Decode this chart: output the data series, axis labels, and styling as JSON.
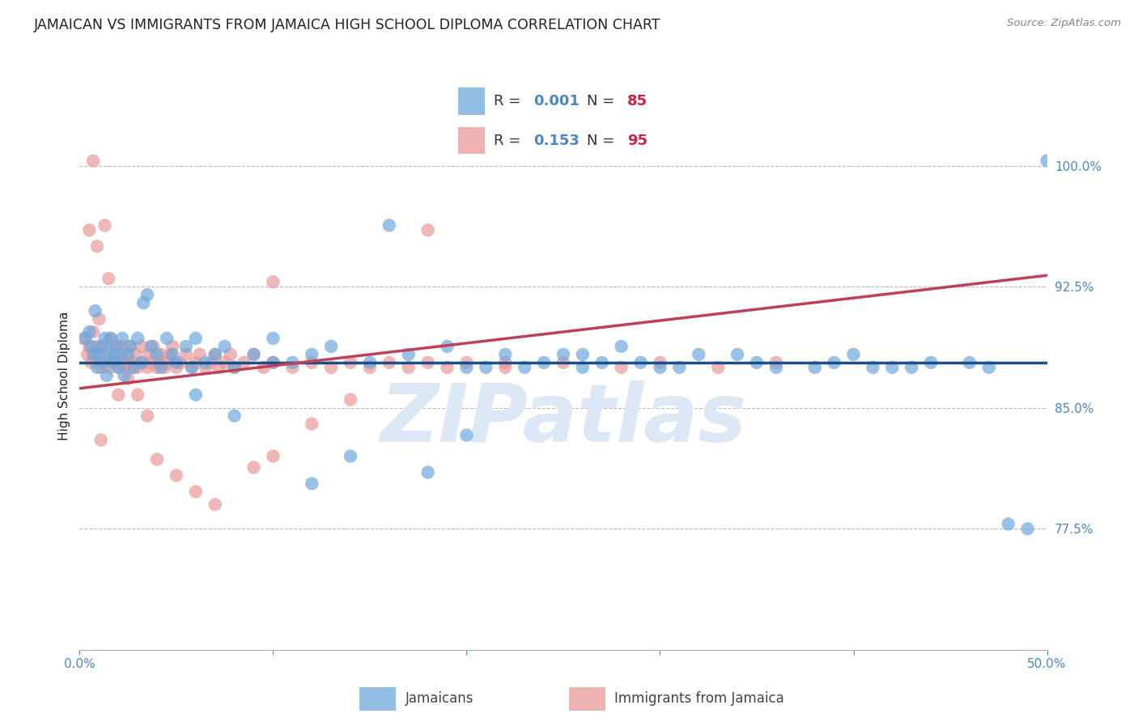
{
  "title": "JAMAICAN VS IMMIGRANTS FROM JAMAICA HIGH SCHOOL DIPLOMA CORRELATION CHART",
  "source": "Source: ZipAtlas.com",
  "ylabel": "High School Diploma",
  "yticks": [
    0.775,
    0.85,
    0.925,
    1.0
  ],
  "ytick_labels": [
    "77.5%",
    "85.0%",
    "92.5%",
    "100.0%"
  ],
  "xrange": [
    0.0,
    0.5
  ],
  "yrange": [
    0.7,
    1.04
  ],
  "watermark": "ZIPatlas",
  "blue_scatter_x": [
    0.003,
    0.005,
    0.006,
    0.007,
    0.008,
    0.009,
    0.01,
    0.011,
    0.012,
    0.013,
    0.014,
    0.015,
    0.016,
    0.017,
    0.018,
    0.019,
    0.02,
    0.021,
    0.022,
    0.023,
    0.025,
    0.026,
    0.028,
    0.03,
    0.032,
    0.033,
    0.035,
    0.037,
    0.04,
    0.042,
    0.045,
    0.048,
    0.05,
    0.055,
    0.058,
    0.06,
    0.065,
    0.07,
    0.075,
    0.08,
    0.09,
    0.1,
    0.11,
    0.12,
    0.13,
    0.15,
    0.17,
    0.19,
    0.2,
    0.22,
    0.24,
    0.26,
    0.28,
    0.3,
    0.32,
    0.35,
    0.38,
    0.4,
    0.43,
    0.46,
    0.49,
    0.5,
    0.16,
    0.21,
    0.25,
    0.29,
    0.34,
    0.36,
    0.39,
    0.41,
    0.44,
    0.47,
    0.2,
    0.23,
    0.27,
    0.31,
    0.12,
    0.14,
    0.08,
    0.06,
    0.42,
    0.48,
    0.1,
    0.18,
    0.26
  ],
  "blue_scatter_y": [
    0.893,
    0.897,
    0.888,
    0.883,
    0.91,
    0.875,
    0.883,
    0.888,
    0.878,
    0.893,
    0.87,
    0.885,
    0.893,
    0.878,
    0.883,
    0.888,
    0.875,
    0.883,
    0.893,
    0.87,
    0.883,
    0.888,
    0.875,
    0.893,
    0.878,
    0.915,
    0.92,
    0.888,
    0.883,
    0.875,
    0.893,
    0.883,
    0.878,
    0.888,
    0.875,
    0.893,
    0.878,
    0.883,
    0.888,
    0.875,
    0.883,
    0.893,
    0.878,
    0.883,
    0.888,
    0.878,
    0.883,
    0.888,
    0.875,
    0.883,
    0.878,
    0.883,
    0.888,
    0.875,
    0.883,
    0.878,
    0.875,
    0.883,
    0.875,
    0.878,
    0.775,
    1.003,
    0.963,
    0.875,
    0.883,
    0.878,
    0.883,
    0.875,
    0.878,
    0.875,
    0.878,
    0.875,
    0.833,
    0.875,
    0.878,
    0.875,
    0.803,
    0.82,
    0.845,
    0.858,
    0.875,
    0.778,
    0.878,
    0.81,
    0.875
  ],
  "pink_scatter_x": [
    0.002,
    0.004,
    0.005,
    0.006,
    0.007,
    0.008,
    0.009,
    0.01,
    0.011,
    0.012,
    0.013,
    0.014,
    0.015,
    0.016,
    0.017,
    0.018,
    0.019,
    0.02,
    0.021,
    0.022,
    0.023,
    0.024,
    0.025,
    0.026,
    0.027,
    0.028,
    0.029,
    0.03,
    0.032,
    0.033,
    0.035,
    0.036,
    0.037,
    0.038,
    0.04,
    0.041,
    0.042,
    0.044,
    0.045,
    0.047,
    0.048,
    0.05,
    0.052,
    0.055,
    0.058,
    0.06,
    0.062,
    0.065,
    0.068,
    0.07,
    0.072,
    0.075,
    0.078,
    0.08,
    0.085,
    0.09,
    0.095,
    0.1,
    0.11,
    0.12,
    0.13,
    0.14,
    0.15,
    0.16,
    0.17,
    0.18,
    0.19,
    0.2,
    0.22,
    0.25,
    0.28,
    0.3,
    0.33,
    0.36,
    0.005,
    0.007,
    0.009,
    0.011,
    0.013,
    0.015,
    0.02,
    0.025,
    0.03,
    0.035,
    0.04,
    0.05,
    0.06,
    0.07,
    0.09,
    0.1,
    0.12,
    0.14,
    0.18,
    0.22,
    0.1
  ],
  "pink_scatter_y": [
    0.893,
    0.883,
    0.888,
    0.878,
    0.897,
    0.883,
    0.888,
    0.905,
    0.875,
    0.888,
    0.878,
    0.883,
    0.875,
    0.893,
    0.878,
    0.883,
    0.888,
    0.875,
    0.878,
    0.888,
    0.875,
    0.883,
    0.878,
    0.888,
    0.875,
    0.878,
    0.883,
    0.875,
    0.888,
    0.878,
    0.875,
    0.883,
    0.878,
    0.888,
    0.875,
    0.878,
    0.883,
    0.875,
    0.878,
    0.883,
    0.888,
    0.875,
    0.878,
    0.883,
    0.875,
    0.878,
    0.883,
    0.875,
    0.878,
    0.883,
    0.875,
    0.878,
    0.883,
    0.875,
    0.878,
    0.883,
    0.875,
    0.878,
    0.875,
    0.878,
    0.875,
    0.878,
    0.875,
    0.878,
    0.875,
    0.878,
    0.875,
    0.878,
    0.875,
    0.878,
    0.875,
    0.878,
    0.875,
    0.878,
    0.96,
    1.003,
    0.95,
    0.83,
    0.963,
    0.93,
    0.858,
    0.868,
    0.858,
    0.845,
    0.818,
    0.808,
    0.798,
    0.79,
    0.813,
    0.82,
    0.84,
    0.855,
    0.96,
    0.878,
    0.928
  ],
  "blue_line_x": [
    0.0,
    0.5
  ],
  "blue_line_y": [
    0.878,
    0.878
  ],
  "pink_line_x": [
    0.0,
    0.5
  ],
  "pink_line_y": [
    0.862,
    0.932
  ],
  "legend_r_blue": "0.001",
  "legend_n_blue": "85",
  "legend_r_pink": "0.153",
  "legend_n_pink": "95",
  "blue_color": "#6fa8dc",
  "pink_color": "#ea9999",
  "blue_line_color": "#1a4f8a",
  "pink_line_color": "#c0405a",
  "title_color": "#222222",
  "axis_label_color": "#4a86c8",
  "watermark_color": "#dce8f5",
  "grid_color": "#bbbbbb",
  "background_color": "#ffffff",
  "legend_text_dark": "#333333",
  "legend_r_color": "#4a86c8",
  "legend_n_color": "#cc2244"
}
